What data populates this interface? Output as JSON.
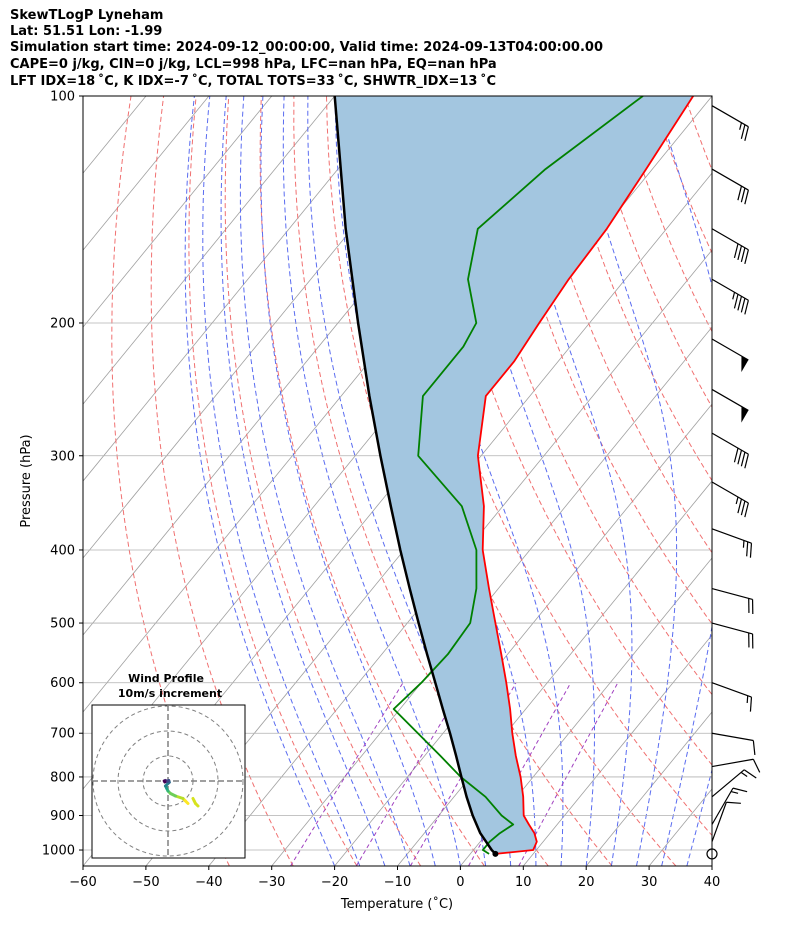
{
  "title": {
    "line1": "SkewTLogP Lyneham",
    "line2": "Lat: 51.51   Lon: -1.99",
    "line3": "Simulation start time: 2024-09-12_00:00:00, Valid time: 2024-09-13T04:00:00.00",
    "line4": "CAPE=0 j/kg, CIN=0 j/kg, LCL=998 hPa, LFC=nan hPa, EQ=nan hPa",
    "line5": "LFT IDX=18$^\\circ$C, K IDX=-7$^\\circ$C, TOTAL TOTS=33$^\\circ$C, SHWTR_IDX=13$^\\circ$C"
  },
  "title_display": {
    "line5": "LFT IDX=18 ˚C, K IDX=-7 ˚C, TOTAL TOTS=33 ˚C, SHWTR_IDX=13 ˚C"
  },
  "chart_data": {
    "type": "line",
    "subtype": "skew-t log-p",
    "xlabel": "Temperature ($^\\circ$C)",
    "xlabel_display": "Temperature (˚C)",
    "ylabel": "Pressure (hPa)",
    "xlim": [
      -60,
      40
    ],
    "ylim": [
      1050,
      100
    ],
    "yscale": "log",
    "x_ticks": [
      -60,
      -50,
      -40,
      -30,
      -20,
      -10,
      0,
      10,
      20,
      30,
      40
    ],
    "y_ticks": [
      100,
      200,
      300,
      400,
      500,
      600,
      700,
      800,
      900,
      1000
    ],
    "grid": true,
    "series": [
      {
        "name": "Temperature",
        "color": "#ff0000",
        "points": [
          [
            1012,
            4.0
          ],
          [
            1000,
            9.5
          ],
          [
            975,
            9.0
          ],
          [
            950,
            7.5
          ],
          [
            925,
            5.5
          ],
          [
            900,
            3.5
          ],
          [
            850,
            1.0
          ],
          [
            800,
            -2.0
          ],
          [
            750,
            -5.5
          ],
          [
            700,
            -9.0
          ],
          [
            650,
            -12.5
          ],
          [
            600,
            -16.5
          ],
          [
            550,
            -21.0
          ],
          [
            500,
            -26.0
          ],
          [
            450,
            -31.5
          ],
          [
            400,
            -37.5
          ],
          [
            350,
            -43.0
          ],
          [
            300,
            -50.5
          ],
          [
            250,
            -57.0
          ],
          [
            225,
            -57.0
          ],
          [
            200,
            -58.0
          ],
          [
            175,
            -59.0
          ],
          [
            150,
            -59.5
          ],
          [
            125,
            -61.0
          ],
          [
            100,
            -63.0
          ]
        ]
      },
      {
        "name": "Dewpoint",
        "color": "#008000",
        "points": [
          [
            1012,
            3.0
          ],
          [
            1000,
            1.5
          ],
          [
            975,
            1.5
          ],
          [
            950,
            2.0
          ],
          [
            925,
            3.0
          ],
          [
            900,
            0.0
          ],
          [
            850,
            -5.0
          ],
          [
            800,
            -11.5
          ],
          [
            750,
            -17.5
          ],
          [
            700,
            -24.0
          ],
          [
            650,
            -31.0
          ],
          [
            600,
            -30.0
          ],
          [
            550,
            -29.5
          ],
          [
            500,
            -30.0
          ],
          [
            450,
            -33.5
          ],
          [
            400,
            -38.5
          ],
          [
            350,
            -46.5
          ],
          [
            300,
            -60.0
          ],
          [
            250,
            -67.0
          ],
          [
            215,
            -67.0
          ],
          [
            200,
            -68.0
          ],
          [
            175,
            -75.0
          ],
          [
            150,
            -80.0
          ],
          [
            125,
            -77.0
          ],
          [
            100,
            -71.0
          ]
        ]
      },
      {
        "name": "Parcel Profile",
        "color": "#000000",
        "points": [
          [
            1012,
            4.0
          ],
          [
            1000,
            2.9
          ],
          [
            950,
            -1.1
          ],
          [
            900,
            -4.6
          ],
          [
            850,
            -8.0
          ],
          [
            800,
            -11.4
          ],
          [
            750,
            -15.0
          ],
          [
            700,
            -18.9
          ],
          [
            650,
            -23.2
          ],
          [
            600,
            -27.8
          ],
          [
            550,
            -32.8
          ],
          [
            500,
            -38.2
          ],
          [
            450,
            -44.1
          ],
          [
            400,
            -50.6
          ],
          [
            350,
            -57.8
          ],
          [
            300,
            -66.0
          ],
          [
            250,
            -75.5
          ],
          [
            200,
            -86.8
          ],
          [
            150,
            -101.0
          ],
          [
            100,
            -120.0
          ]
        ]
      }
    ],
    "shaded_area": {
      "between": [
        "Parcel Profile",
        "Temperature"
      ],
      "color": "#a3c6e0"
    },
    "background_lines": {
      "isotherms": {
        "color": "#a0a0a0"
      },
      "dry_adiabats": {
        "color": "#f07070",
        "style": "dashed"
      },
      "moist_adiabats": {
        "color": "#5a6cf0",
        "style": "dashed"
      },
      "mixing_ratio": {
        "color": "#a040c0",
        "style": "dashed"
      }
    },
    "wind_barbs": [
      {
        "p": 1012,
        "speed_kt": 0,
        "dir": 0
      },
      {
        "p": 975,
        "speed_kt": 10,
        "dir": 200
      },
      {
        "p": 925,
        "speed_kt": 15,
        "dir": 210
      },
      {
        "p": 850,
        "speed_kt": 15,
        "dir": 230
      },
      {
        "p": 775,
        "speed_kt": 10,
        "dir": 260
      },
      {
        "p": 700,
        "speed_kt": 10,
        "dir": 280
      },
      {
        "p": 600,
        "speed_kt": 15,
        "dir": 290
      },
      {
        "p": 500,
        "speed_kt": 20,
        "dir": 285
      },
      {
        "p": 450,
        "speed_kt": 20,
        "dir": 285
      },
      {
        "p": 375,
        "speed_kt": 25,
        "dir": 290
      },
      {
        "p": 325,
        "speed_kt": 35,
        "dir": 300
      },
      {
        "p": 280,
        "speed_kt": 40,
        "dir": 300
      },
      {
        "p": 245,
        "speed_kt": 50,
        "dir": 300
      },
      {
        "p": 210,
        "speed_kt": 50,
        "dir": 300
      },
      {
        "p": 175,
        "speed_kt": 45,
        "dir": 300
      },
      {
        "p": 150,
        "speed_kt": 40,
        "dir": 300
      },
      {
        "p": 125,
        "speed_kt": 30,
        "dir": 300
      },
      {
        "p": 103,
        "speed_kt": 25,
        "dir": 300
      }
    ],
    "inset": {
      "title_line1": "Wind Profile",
      "title_line2": "10m/s increment",
      "type": "hodograph",
      "ring_increment_ms": 10,
      "colormap": "viridis",
      "points": [
        [
          8,
          -9
        ],
        [
          7,
          -8
        ],
        [
          6,
          -7
        ],
        [
          3,
          -6
        ],
        [
          1,
          -5
        ],
        [
          0,
          -4
        ],
        [
          -0.5,
          -3
        ],
        [
          -1,
          -2
        ],
        [
          0,
          -1
        ],
        [
          0.5,
          -0.5
        ],
        [
          0.3,
          0.2
        ],
        [
          -0.4,
          -0.2
        ],
        [
          -1.0,
          0.2
        ],
        [
          -1.5,
          0
        ],
        [
          -1.3,
          -0.4
        ]
      ],
      "upper_points": [
        [
          12,
          -10
        ],
        [
          11,
          -9
        ],
        [
          10.5,
          -8
        ],
        [
          10,
          -7
        ]
      ]
    }
  }
}
